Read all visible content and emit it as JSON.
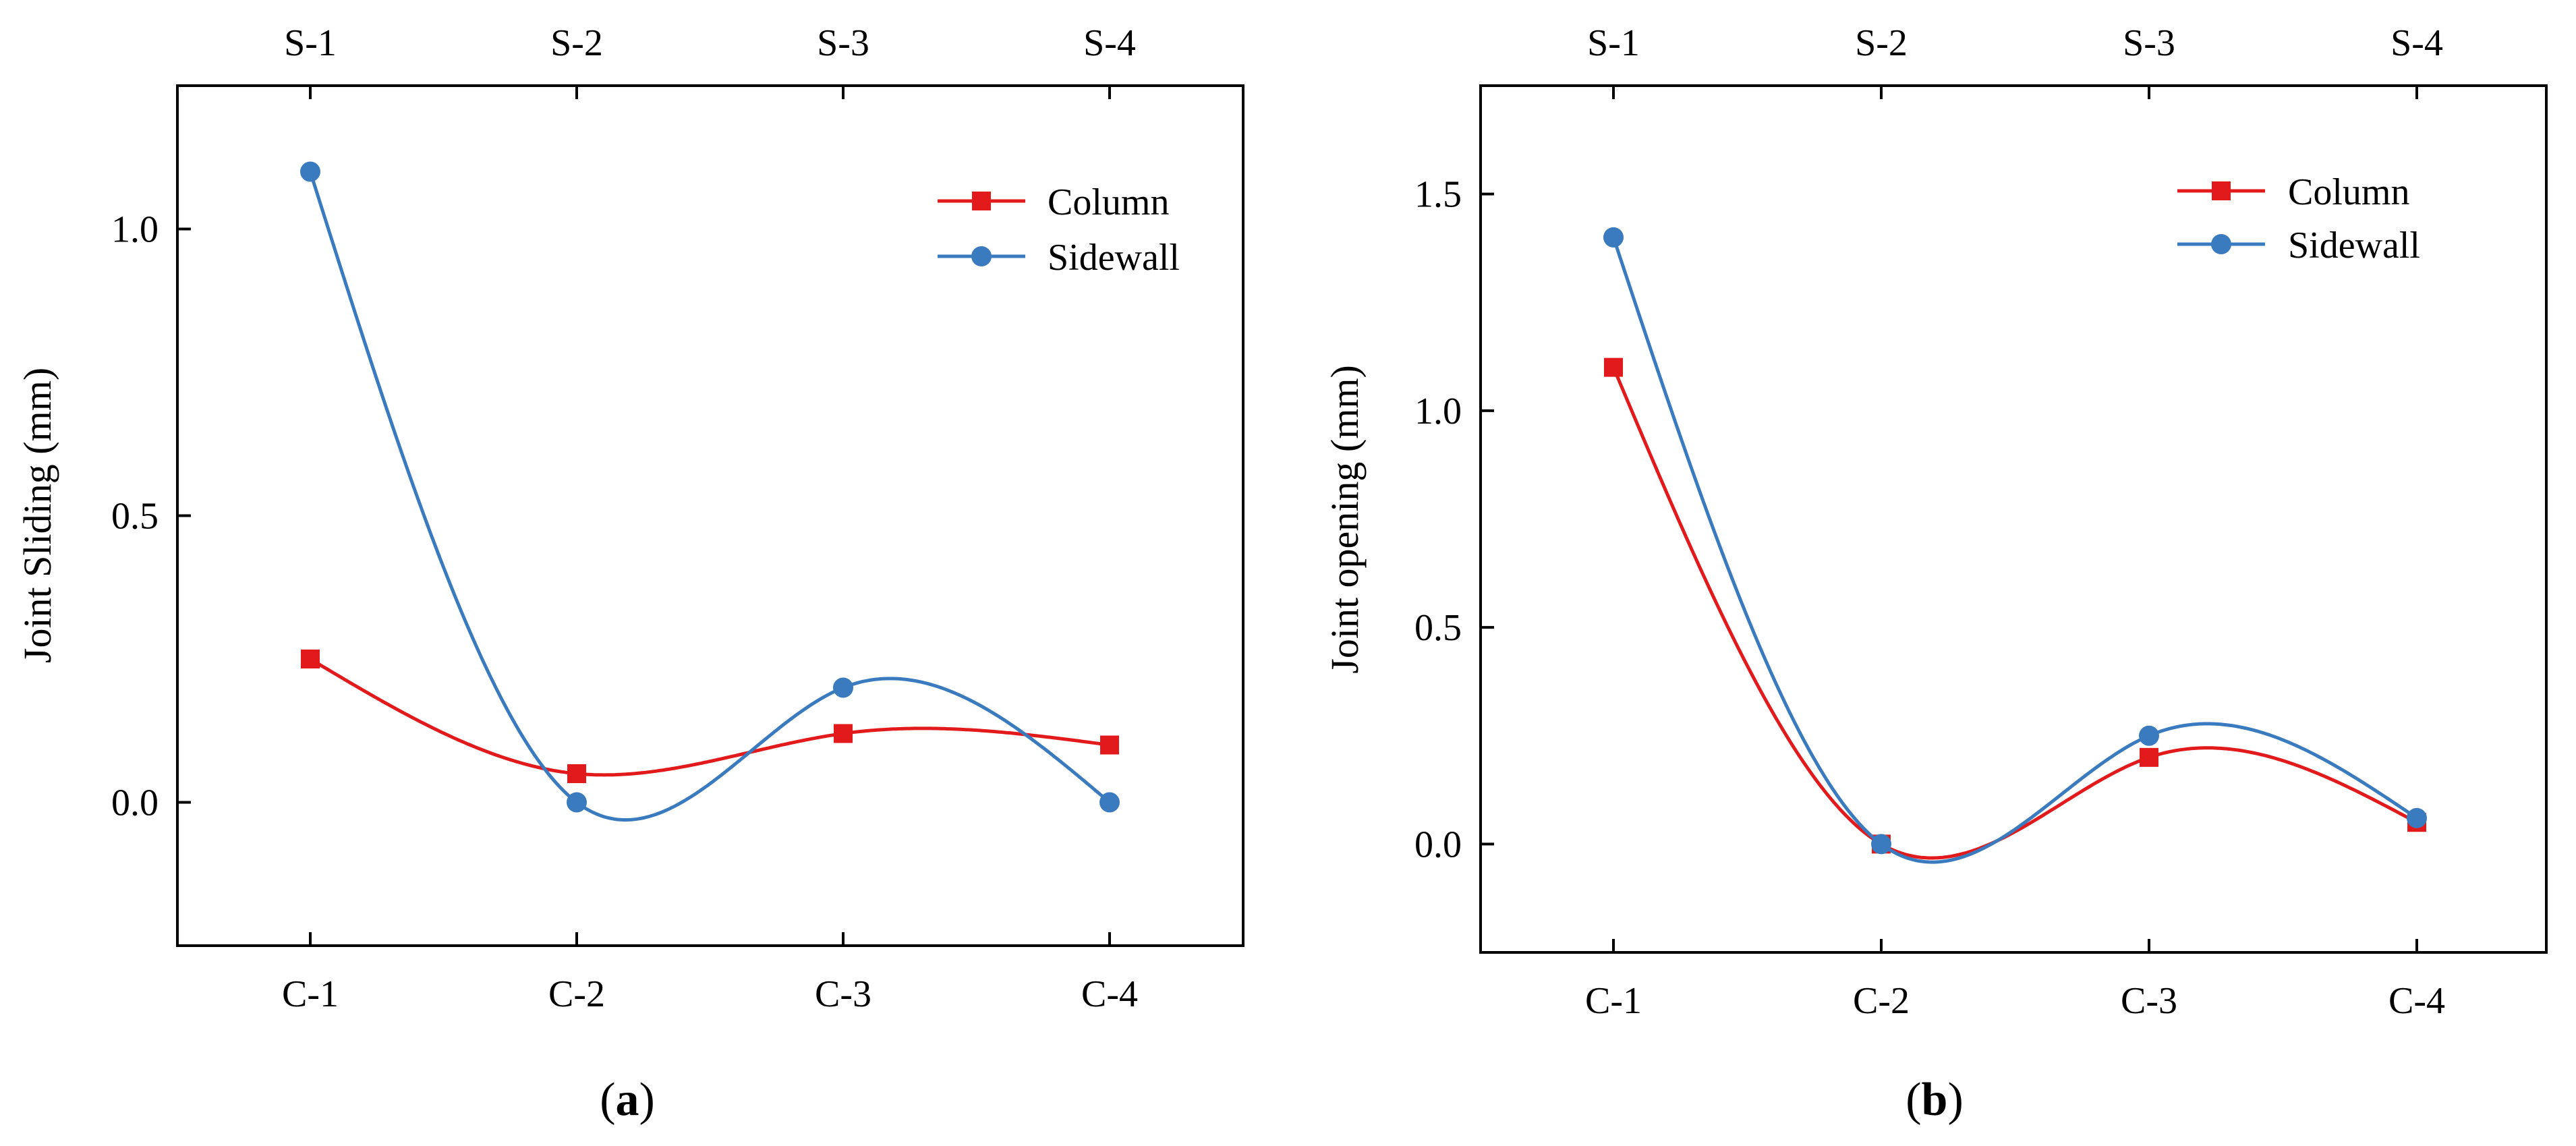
{
  "colors": {
    "column": "#e31a1c",
    "sidewall": "#3a7bbf",
    "axis": "#000000"
  },
  "chart_data": [
    {
      "type": "line",
      "caption": "a",
      "categories": [
        "C-1",
        "C-2",
        "C-3",
        "C-4"
      ],
      "top_categories": [
        "S-1",
        "S-2",
        "S-3",
        "S-4"
      ],
      "xlabel": "",
      "ylabel": "Joint Sliding (mm)",
      "ylim": [
        -0.25,
        1.25
      ],
      "yticks": [
        0.0,
        0.5,
        1.0
      ],
      "ytick_labels": [
        "0.0",
        "0.5",
        "1.0"
      ],
      "legend_position": "top-right",
      "series": [
        {
          "name": "Column",
          "marker": "square",
          "color_key": "column",
          "values": [
            0.25,
            0.05,
            0.12,
            0.1
          ]
        },
        {
          "name": "Sidewall",
          "marker": "circle",
          "color_key": "sidewall",
          "values": [
            1.1,
            0.0,
            0.2,
            0.0
          ]
        }
      ]
    },
    {
      "type": "line",
      "caption": "b",
      "categories": [
        "C-1",
        "C-2",
        "C-3",
        "C-4"
      ],
      "top_categories": [
        "S-1",
        "S-2",
        "S-3",
        "S-4"
      ],
      "xlabel": "",
      "ylabel": "Joint opening (mm)",
      "ylim": [
        -0.25,
        1.75
      ],
      "yticks": [
        0.0,
        0.5,
        1.0,
        1.5
      ],
      "ytick_labels": [
        "0.0",
        "0.5",
        "1.0",
        "1.5"
      ],
      "legend_position": "top-right",
      "series": [
        {
          "name": "Column",
          "marker": "square",
          "color_key": "column",
          "values": [
            1.1,
            0.0,
            0.2,
            0.05
          ]
        },
        {
          "name": "Sidewall",
          "marker": "circle",
          "color_key": "sidewall",
          "values": [
            1.4,
            0.0,
            0.25,
            0.06
          ]
        }
      ]
    }
  ]
}
